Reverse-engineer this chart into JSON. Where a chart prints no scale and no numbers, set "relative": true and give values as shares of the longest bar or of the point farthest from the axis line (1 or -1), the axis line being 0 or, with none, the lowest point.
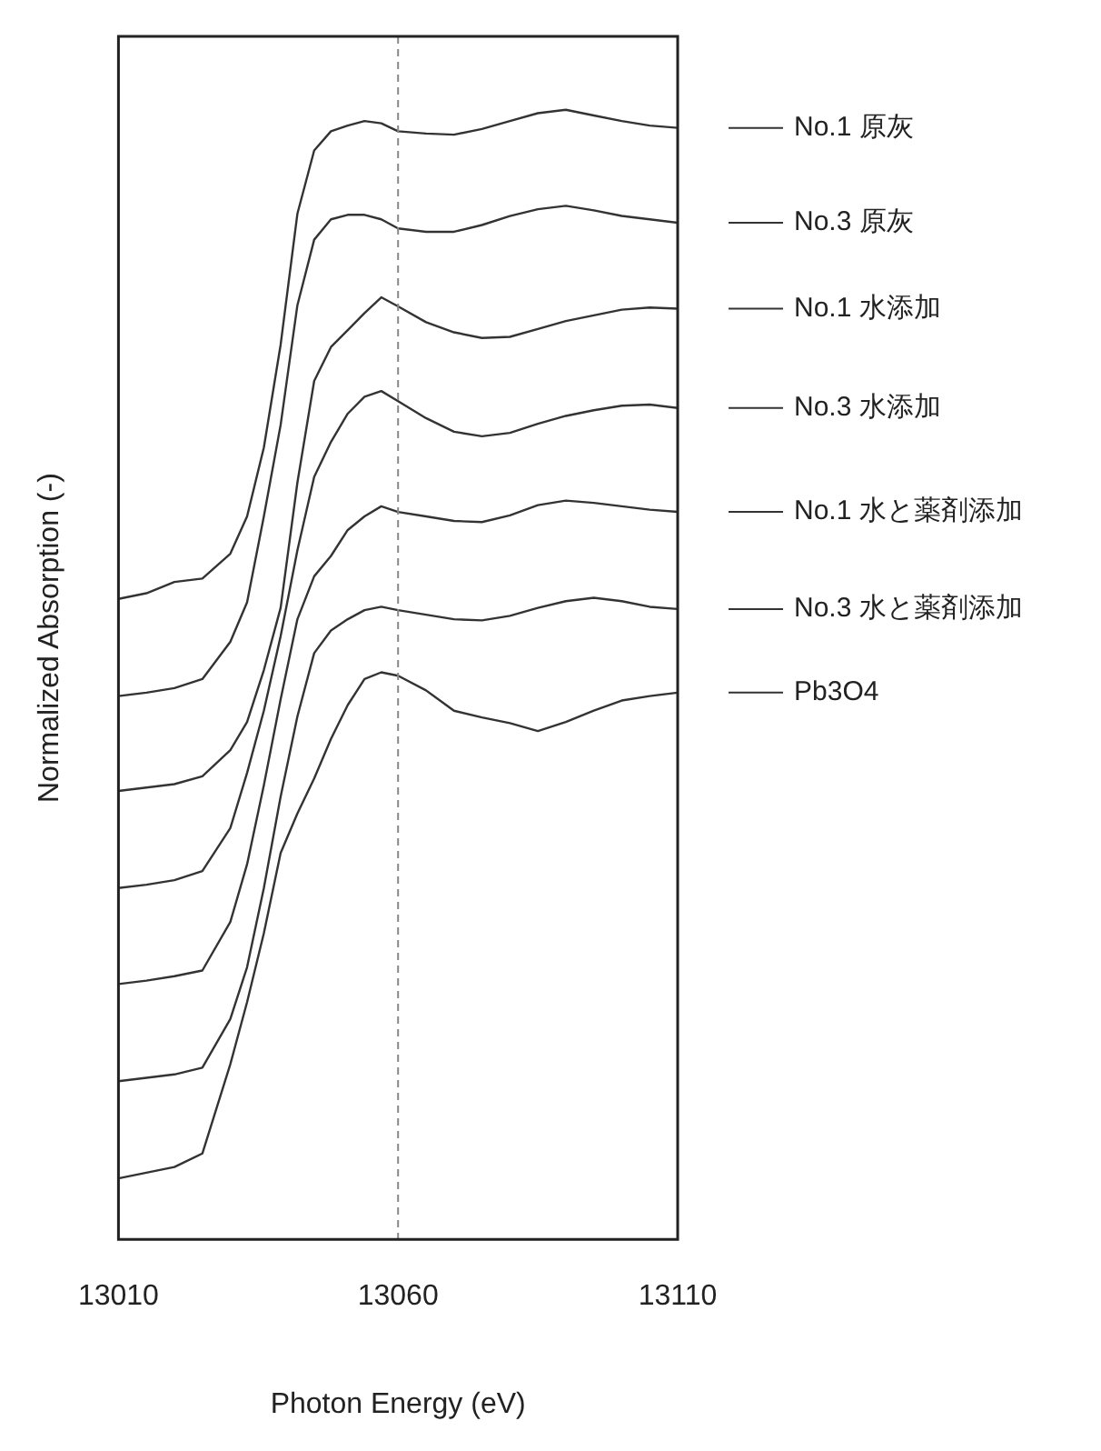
{
  "chart_data": {
    "type": "line",
    "relative": true,
    "xlabel": "Photon Energy (eV)",
    "ylabel": "Normalized Absorption (-)",
    "x": [
      13010,
      13015,
      13020,
      13025,
      13030,
      13033,
      13036,
      13039,
      13042,
      13045,
      13048,
      13051,
      13054,
      13057,
      13060,
      13065,
      13070,
      13075,
      13080,
      13085,
      13090,
      13095,
      13100,
      13105,
      13110
    ],
    "xlim": [
      13010,
      13110
    ],
    "xticks": [
      13010,
      13060,
      13110
    ],
    "grid": false,
    "legend": "right",
    "marker": "none",
    "line_style": "solid",
    "ref_lines": [
      {
        "axis": "x",
        "value": 13060,
        "color": "#888888",
        "line_style": "dashed"
      }
    ],
    "series": [
      {
        "name": "No.1 原灰",
        "color": "#333333",
        "values": [
          0.567,
          0.572,
          0.582,
          0.585,
          0.607,
          0.64,
          0.701,
          0.792,
          0.908,
          0.964,
          0.981,
          0.986,
          0.99,
          0.988,
          0.981,
          0.979,
          0.978,
          0.983,
          0.99,
          0.997,
          1.0,
          0.995,
          0.99,
          0.986,
          0.984
        ]
      },
      {
        "name": "No.3 原灰",
        "color": "#333333",
        "values": [
          0.481,
          0.484,
          0.488,
          0.496,
          0.529,
          0.564,
          0.64,
          0.721,
          0.827,
          0.885,
          0.903,
          0.907,
          0.907,
          0.903,
          0.895,
          0.892,
          0.892,
          0.898,
          0.906,
          0.912,
          0.915,
          0.911,
          0.906,
          0.903,
          0.9
        ]
      },
      {
        "name": "No.1 水添加",
        "color": "#333333",
        "values": [
          0.397,
          0.4,
          0.403,
          0.41,
          0.433,
          0.458,
          0.504,
          0.559,
          0.67,
          0.76,
          0.79,
          0.805,
          0.82,
          0.834,
          0.826,
          0.812,
          0.803,
          0.798,
          0.799,
          0.806,
          0.813,
          0.818,
          0.823,
          0.825,
          0.824
        ]
      },
      {
        "name": "No.3 水添加",
        "color": "#333333",
        "values": [
          0.311,
          0.314,
          0.318,
          0.326,
          0.364,
          0.413,
          0.468,
          0.534,
          0.61,
          0.675,
          0.706,
          0.731,
          0.746,
          0.751,
          0.742,
          0.727,
          0.715,
          0.711,
          0.714,
          0.722,
          0.729,
          0.734,
          0.738,
          0.739,
          0.736
        ]
      },
      {
        "name": "No.1 水と薬剤添加",
        "color": "#333333",
        "values": [
          0.226,
          0.229,
          0.233,
          0.238,
          0.281,
          0.332,
          0.402,
          0.478,
          0.549,
          0.587,
          0.605,
          0.628,
          0.64,
          0.649,
          0.644,
          0.64,
          0.636,
          0.635,
          0.641,
          0.65,
          0.654,
          0.652,
          0.649,
          0.646,
          0.644
        ]
      },
      {
        "name": "No.3 水と薬剤添加",
        "color": "#333333",
        "values": [
          0.14,
          0.143,
          0.146,
          0.152,
          0.195,
          0.241,
          0.311,
          0.392,
          0.463,
          0.519,
          0.539,
          0.549,
          0.557,
          0.56,
          0.557,
          0.553,
          0.549,
          0.548,
          0.552,
          0.559,
          0.565,
          0.568,
          0.565,
          0.56,
          0.558
        ]
      },
      {
        "name": "Pb3O4",
        "color": "#333333",
        "values": [
          0.054,
          0.059,
          0.064,
          0.076,
          0.155,
          0.21,
          0.271,
          0.342,
          0.377,
          0.408,
          0.443,
          0.473,
          0.496,
          0.502,
          0.499,
          0.486,
          0.468,
          0.462,
          0.457,
          0.45,
          0.458,
          0.468,
          0.477,
          0.481,
          0.484
        ]
      }
    ]
  }
}
